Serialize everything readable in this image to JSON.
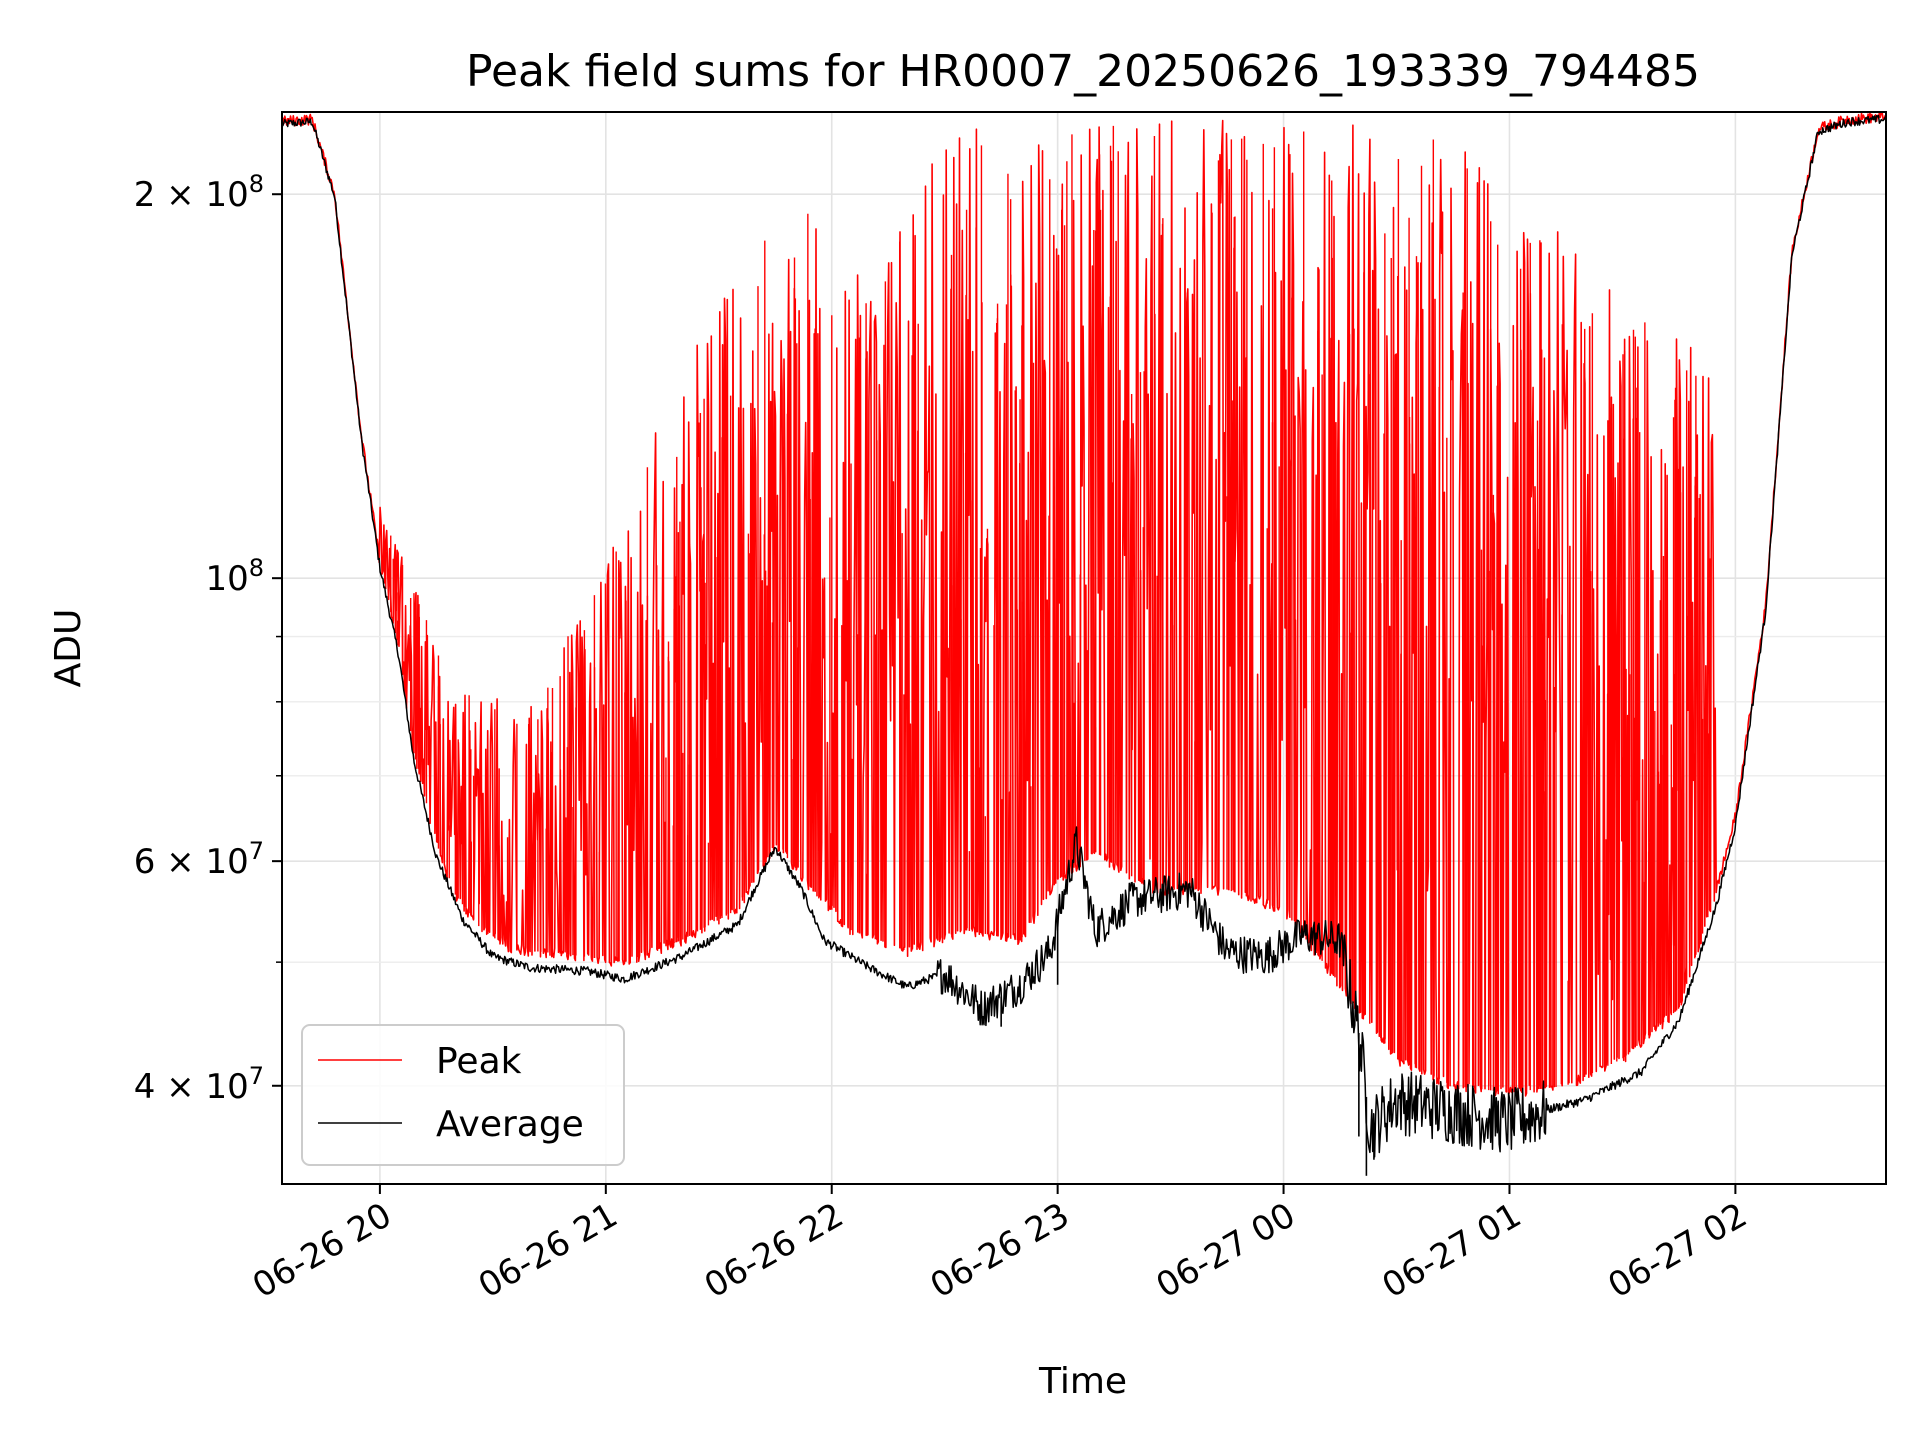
{
  "chart_data": {
    "type": "line",
    "title": "Peak field sums for HR0007_20250626_193339_794485",
    "xlabel": "Time",
    "ylabel": "ADU",
    "yscale": "log",
    "ylim": [
      33500000,
      232000000
    ],
    "xlim": [
      "2025-06-26 19:34",
      "2025-06-27 02:40"
    ],
    "grid": true,
    "legend_position": "lower-left",
    "x_ticks": [
      {
        "label": "06-26 20",
        "value": "2025-06-26 20:00"
      },
      {
        "label": "06-26 21",
        "value": "2025-06-26 21:00"
      },
      {
        "label": "06-26 22",
        "value": "2025-06-26 22:00"
      },
      {
        "label": "06-26 23",
        "value": "2025-06-26 23:00"
      },
      {
        "label": "06-27 00",
        "value": "2025-06-27 00:00"
      },
      {
        "label": "06-27 01",
        "value": "2025-06-27 01:00"
      },
      {
        "label": "06-27 02",
        "value": "2025-06-27 02:00"
      }
    ],
    "y_ticks": [
      {
        "value": 200000000,
        "mantissa": "2",
        "exponent": "8"
      },
      {
        "value": 100000000,
        "mantissa": "",
        "exponent": "8"
      },
      {
        "value": 60000000,
        "mantissa": "6",
        "exponent": "7"
      },
      {
        "value": 40000000,
        "mantissa": "4",
        "exponent": "7"
      }
    ],
    "y_minor_gridlines": [
      50000000,
      70000000,
      80000000,
      90000000
    ],
    "series": [
      {
        "name": "Peak",
        "color": "#ff0000",
        "baseline": [
          [
            "2025-06-26 19:34",
            228000000
          ],
          [
            "2025-06-26 19:42",
            229000000
          ],
          [
            "2025-06-26 19:48",
            200000000
          ],
          [
            "2025-06-26 19:55",
            130000000
          ],
          [
            "2025-06-26 20:00",
            103000000
          ],
          [
            "2025-06-26 20:05",
            88000000
          ],
          [
            "2025-06-26 20:09",
            73000000
          ],
          [
            "2025-06-26 20:15",
            62000000
          ],
          [
            "2025-06-26 20:20",
            56500000
          ],
          [
            "2025-06-26 20:27",
            53000000
          ],
          [
            "2025-06-26 20:35",
            51200000
          ],
          [
            "2025-06-26 20:50",
            50700000
          ],
          [
            "2025-06-26 21:05",
            50000000
          ],
          [
            "2025-06-26 21:20",
            52000000
          ],
          [
            "2025-06-26 21:35",
            55000000
          ],
          [
            "2025-06-26 21:45",
            62000000
          ],
          [
            "2025-06-26 21:55",
            57000000
          ],
          [
            "2025-06-26 22:05",
            53000000
          ],
          [
            "2025-06-26 22:20",
            51000000
          ],
          [
            "2025-06-26 22:35",
            53000000
          ],
          [
            "2025-06-26 22:50",
            52000000
          ],
          [
            "2025-06-26 23:00",
            58000000
          ],
          [
            "2025-06-26 23:10",
            61000000
          ],
          [
            "2025-06-26 23:25",
            57000000
          ],
          [
            "2025-06-26 23:45",
            57000000
          ],
          [
            "2025-06-27 00:00",
            55000000
          ],
          [
            "2025-06-27 00:15",
            48000000
          ],
          [
            "2025-06-27 00:30",
            42000000
          ],
          [
            "2025-06-27 00:45",
            40000000
          ],
          [
            "2025-06-27 01:00",
            39500000
          ],
          [
            "2025-06-27 01:15",
            40000000
          ],
          [
            "2025-06-27 01:30",
            42000000
          ],
          [
            "2025-06-27 01:45",
            46000000
          ],
          [
            "2025-06-27 01:55",
            57000000
          ],
          [
            "2025-06-27 02:00",
            65000000
          ],
          [
            "2025-06-27 02:08",
            95000000
          ],
          [
            "2025-06-27 02:15",
            180000000
          ],
          [
            "2025-06-27 02:22",
            225000000
          ],
          [
            "2025-06-27 02:30",
            229000000
          ],
          [
            "2025-06-27 02:40",
            230000000
          ]
        ],
        "spike_envelope": [
          [
            "2025-06-26 20:00",
            115000000
          ],
          [
            "2025-06-26 20:20",
            82000000
          ],
          [
            "2025-06-26 20:40",
            80000000
          ],
          [
            "2025-06-26 21:00",
            102000000
          ],
          [
            "2025-06-26 21:20",
            150000000
          ],
          [
            "2025-06-26 21:35",
            175000000
          ],
          [
            "2025-06-26 21:50",
            200000000
          ],
          [
            "2025-06-26 22:10",
            170000000
          ],
          [
            "2025-06-26 22:30",
            230000000
          ],
          [
            "2025-06-26 23:00",
            230000000
          ],
          [
            "2025-06-26 23:30",
            230000000
          ],
          [
            "2025-06-27 00:00",
            230000000
          ],
          [
            "2025-06-27 00:30",
            230000000
          ],
          [
            "2025-06-27 00:50",
            215000000
          ],
          [
            "2025-06-27 01:10",
            190000000
          ],
          [
            "2025-06-27 01:30",
            170000000
          ],
          [
            "2025-06-27 01:50",
            150000000
          ]
        ]
      },
      {
        "name": "Average",
        "color": "#000000",
        "values": [
          [
            "2025-06-26 19:34",
            227000000
          ],
          [
            "2025-06-26 19:42",
            228000000
          ],
          [
            "2025-06-26 19:48",
            199000000
          ],
          [
            "2025-06-26 19:55",
            129000000
          ],
          [
            "2025-06-26 20:00",
            102000000
          ],
          [
            "2025-06-26 20:05",
            87000000
          ],
          [
            "2025-06-26 20:09",
            72000000
          ],
          [
            "2025-06-26 20:15",
            60500000
          ],
          [
            "2025-06-26 20:22",
            54000000
          ],
          [
            "2025-06-26 20:30",
            50500000
          ],
          [
            "2025-06-26 20:40",
            49500000
          ],
          [
            "2025-06-26 20:55",
            49200000
          ],
          [
            "2025-06-26 21:05",
            48500000
          ],
          [
            "2025-06-26 21:20",
            50500000
          ],
          [
            "2025-06-26 21:35",
            53500000
          ],
          [
            "2025-06-26 21:40",
            57500000
          ],
          [
            "2025-06-26 21:45",
            61500000
          ],
          [
            "2025-06-26 21:52",
            57000000
          ],
          [
            "2025-06-26 21:58",
            52000000
          ],
          [
            "2025-06-26 22:10",
            49500000
          ],
          [
            "2025-06-26 22:20",
            47800000
          ],
          [
            "2025-06-26 22:30",
            49000000
          ],
          [
            "2025-06-26 22:40",
            46000000
          ],
          [
            "2025-06-26 22:50",
            48000000
          ],
          [
            "2025-06-26 22:58",
            51000000
          ],
          [
            "2025-06-26 23:05",
            62000000
          ],
          [
            "2025-06-26 23:10",
            53000000
          ],
          [
            "2025-06-26 23:20",
            56000000
          ],
          [
            "2025-06-26 23:35",
            57000000
          ],
          [
            "2025-06-26 23:45",
            51000000
          ],
          [
            "2025-06-26 23:55",
            50500000
          ],
          [
            "2025-06-27 00:05",
            52500000
          ],
          [
            "2025-06-27 00:15",
            52000000
          ],
          [
            "2025-06-27 00:20",
            44000000
          ],
          [
            "2025-06-27 00:23",
            37000000
          ],
          [
            "2025-06-27 00:30",
            39000000
          ],
          [
            "2025-06-27 00:40",
            38500000
          ],
          [
            "2025-06-27 00:50",
            38000000
          ],
          [
            "2025-06-27 01:00",
            37500000
          ],
          [
            "2025-06-27 01:10",
            38300000
          ],
          [
            "2025-06-27 01:20",
            39000000
          ],
          [
            "2025-06-27 01:35",
            41000000
          ],
          [
            "2025-06-27 01:45",
            45000000
          ],
          [
            "2025-06-27 01:55",
            55500000
          ],
          [
            "2025-06-27 02:00",
            64000000
          ],
          [
            "2025-06-27 02:08",
            94000000
          ],
          [
            "2025-06-27 02:15",
            179000000
          ],
          [
            "2025-06-27 02:22",
            224000000
          ],
          [
            "2025-06-27 02:30",
            228000000
          ],
          [
            "2025-06-27 02:40",
            229000000
          ]
        ],
        "dips": [
          [
            "2025-06-27 00:22",
            34000000
          ],
          [
            "2025-06-27 00:24",
            35000000
          ],
          [
            "2025-06-27 00:20",
            36500000
          ],
          [
            "2025-06-26 22:45",
            44500000
          ],
          [
            "2025-06-26 23:00",
            48000000
          ]
        ]
      }
    ]
  }
}
